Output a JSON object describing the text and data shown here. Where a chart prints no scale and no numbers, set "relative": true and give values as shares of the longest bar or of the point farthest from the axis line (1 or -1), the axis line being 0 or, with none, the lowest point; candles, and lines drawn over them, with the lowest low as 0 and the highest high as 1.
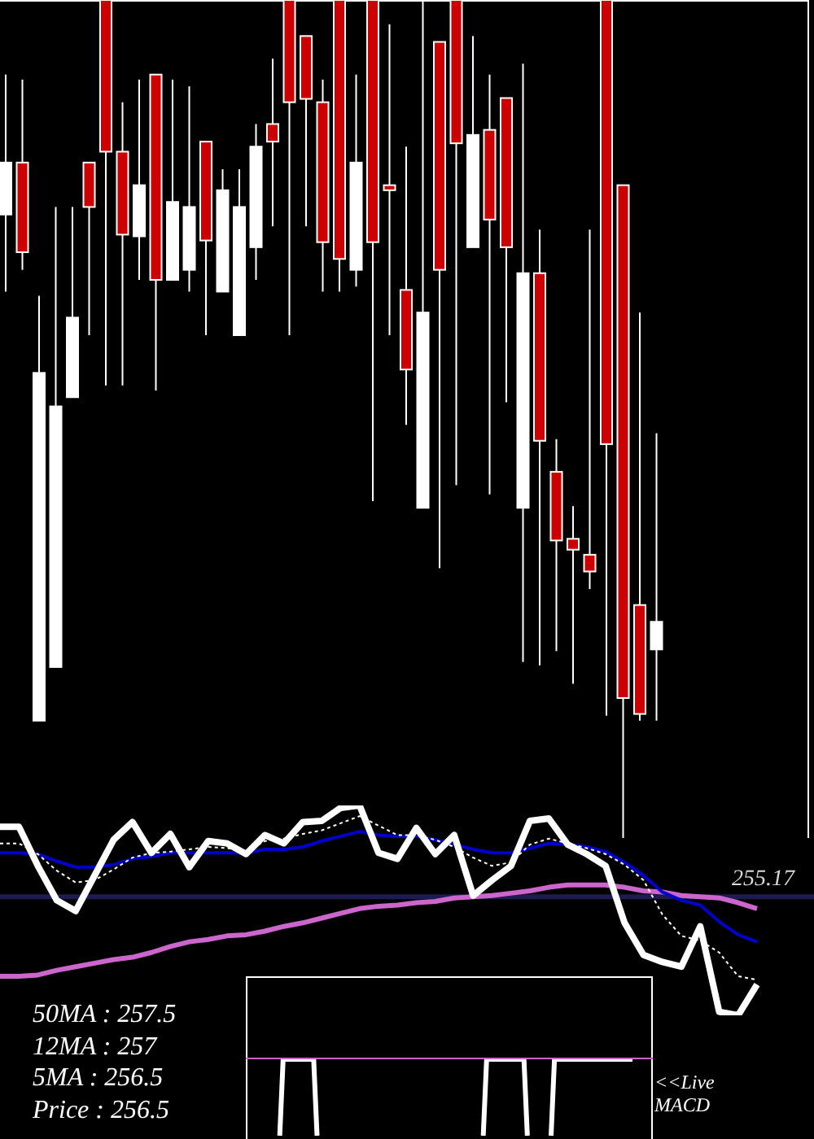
{
  "chart_data": [
    {
      "type": "candlestick",
      "relative": true,
      "categories": [
        null,
        null,
        null,
        null,
        null,
        null,
        null,
        null,
        null,
        null,
        null,
        null,
        null,
        null,
        null,
        null,
        null,
        null,
        null,
        null,
        null,
        null,
        null,
        null,
        null,
        null,
        null,
        null,
        null,
        null,
        null,
        null,
        null,
        null,
        null,
        null,
        null,
        null,
        null,
        null
      ],
      "ohlc": [
        [
          0.744,
          0.911,
          0.652,
          0.806
        ],
        [
          0.806,
          0.905,
          0.678,
          0.699
        ],
        [
          0.14,
          0.647,
          0.14,
          0.555
        ],
        [
          0.204,
          0.753,
          0.204,
          0.515
        ],
        [
          0.526,
          0.753,
          0.526,
          0.621
        ],
        [
          0.806,
          0.806,
          0.6,
          0.753
        ],
        [
          1,
          1,
          0.54,
          0.819
        ],
        [
          0.819,
          0.878,
          0.54,
          0.72
        ],
        [
          0.718,
          0.905,
          0.666,
          0.779
        ],
        [
          0.911,
          0.911,
          0.534,
          0.666
        ],
        [
          0.666,
          0.905,
          0.666,
          0.759
        ],
        [
          0.678,
          0.897,
          0.652,
          0.753
        ],
        [
          0.831,
          0.831,
          0.6,
          0.713
        ],
        [
          0.652,
          0.798,
          0.652,
          0.773
        ],
        [
          0.6,
          0.798,
          0.6,
          0.753
        ],
        [
          0.705,
          0.852,
          0.666,
          0.825
        ],
        [
          0.852,
          0.93,
          0.73,
          0.831
        ],
        [
          1,
          1,
          0.6,
          0.878
        ],
        [
          0.957,
          0.957,
          0.73,
          0.882
        ],
        [
          0.878,
          0.905,
          0.652,
          0.711
        ],
        [
          1,
          1,
          0.652,
          0.691
        ],
        [
          0.678,
          0.911,
          0.658,
          0.806
        ],
        [
          1,
          1,
          0.402,
          0.711
        ],
        [
          0.779,
          0.971,
          0.6,
          0.773
        ],
        [
          0.654,
          0.825,
          0.493,
          0.559
        ],
        [
          0.394,
          1,
          0.394,
          0.627
        ],
        [
          0.95,
          0.95,
          0.322,
          0.678
        ],
        [
          1,
          1,
          0.421,
          0.829
        ],
        [
          0.705,
          0.957,
          0.705,
          0.839
        ],
        [
          0.845,
          0.911,
          0.41,
          0.738
        ],
        [
          0.883,
          0.883,
          0.52,
          0.705
        ],
        [
          0.394,
          0.924,
          0.21,
          0.674
        ],
        [
          0.674,
          0.726,
          0.206,
          0.474
        ],
        [
          0.437,
          0.476,
          0.223,
          0.355
        ],
        [
          0.357,
          0.396,
          0.184,
          0.344
        ],
        [
          0.338,
          0.726,
          0.297,
          0.318
        ],
        [
          1,
          1,
          0.146,
          0.47
        ],
        [
          0.779,
          0.779,
          0,
          0.167
        ],
        [
          0.278,
          0.627,
          0.14,
          0.148
        ],
        [
          0.225,
          0.483,
          0.14,
          0.258
        ]
      ],
      "colors": [
        "#ffffff",
        "#cc0000",
        "#ffffff",
        "#ffffff",
        "#ffffff",
        "#cc0000",
        "#cc0000",
        "#cc0000",
        "#ffffff",
        "#cc0000",
        "#ffffff",
        "#ffffff",
        "#cc0000",
        "#ffffff",
        "#ffffff",
        "#ffffff",
        "#cc0000",
        "#cc0000",
        "#cc0000",
        "#cc0000",
        "#cc0000",
        "#ffffff",
        "#cc0000",
        "#cc0000",
        "#cc0000",
        "#ffffff",
        "#cc0000",
        "#cc0000",
        "#ffffff",
        "#cc0000",
        "#cc0000",
        "#ffffff",
        "#cc0000",
        "#cc0000",
        "#cc0000",
        "#cc0000",
        "#cc0000",
        "#cc0000",
        "#cc0000",
        "#ffffff"
      ]
    },
    {
      "type": "line",
      "relative": true,
      "categories": [
        null,
        null,
        null,
        null,
        null,
        null,
        null,
        null,
        null,
        null,
        null,
        null,
        null,
        null,
        null,
        null,
        null,
        null,
        null,
        null,
        null,
        null,
        null,
        null,
        null,
        null,
        null,
        null,
        null,
        null,
        null,
        null,
        null,
        null,
        null,
        null,
        null,
        null,
        null,
        null,
        null
      ],
      "series": [
        {
          "color": "#cc66cc",
          "values": [
            -0.67,
            -0.67,
            -0.66,
            -0.62,
            -0.59,
            -0.56,
            -0.53,
            -0.51,
            -0.47,
            -0.42,
            -0.38,
            -0.36,
            -0.33,
            -0.32,
            -0.29,
            -0.25,
            -0.22,
            -0.18,
            -0.14,
            -0.1,
            -0.08,
            -0.07,
            -0.05,
            -0.04,
            -0.01,
            0,
            0.01,
            0.03,
            0.05,
            0.08,
            0.1,
            0.1,
            0.1,
            0.08,
            0.05,
            0.04,
            0.01,
            0,
            -0.01,
            -0.05,
            -0.1
          ]
        },
        {
          "color": "#0000cc",
          "values": [
            0.37,
            0.37,
            0.36,
            0.3,
            0.25,
            0.25,
            0.27,
            0.32,
            0.34,
            0.37,
            0.37,
            0.37,
            0.37,
            0.37,
            0.4,
            0.4,
            0.42,
            0.47,
            0.51,
            0.55,
            0.52,
            0.51,
            0.51,
            0.48,
            0.44,
            0.4,
            0.37,
            0.37,
            0.41,
            0.45,
            0.44,
            0.42,
            0.38,
            0.29,
            0.18,
            0.04,
            -0.03,
            -0.07,
            -0.21,
            -0.32,
            -0.38
          ]
        },
        {
          "color": "#ffffff",
          "line_style": "dotted",
          "values": [
            0.45,
            0.45,
            0.36,
            0.22,
            0.12,
            0.14,
            0.23,
            0.33,
            0.37,
            0.38,
            0.4,
            0.42,
            0.41,
            0.38,
            0.47,
            0.49,
            0.53,
            0.56,
            0.62,
            0.68,
            0.6,
            0.52,
            0.52,
            0.48,
            0.42,
            0.33,
            0.26,
            0.29,
            0.44,
            0.49,
            0.45,
            0.41,
            0.36,
            0.27,
            0.14,
            -0.15,
            -0.33,
            -0.37,
            -0.47,
            -0.67,
            -0.7
          ]
        },
        {
          "color": "#ffffff",
          "values": [
            0.59,
            0.59,
            0.26,
            -0.03,
            -0.12,
            0.18,
            0.48,
            0.63,
            0.37,
            0.53,
            0.25,
            0.47,
            0.45,
            0.36,
            0.52,
            0.45,
            0.63,
            0.64,
            0.75,
            0.77,
            0.37,
            0.32,
            0.58,
            0.36,
            0.52,
            0.01,
            0.14,
            0.26,
            0.64,
            0.66,
            0.44,
            0.36,
            0.26,
            -0.22,
            -0.49,
            -0.55,
            -0.59,
            -0.25,
            -0.97,
            -1,
            -0.74
          ]
        }
      ],
      "ref_lines": [
        {
          "axis": "y",
          "value": 0,
          "color": "#1c1c50"
        }
      ],
      "annotations": [
        "255.17",
        "50MA : 257.5",
        "12MA : 257",
        "5MA : 256.5",
        "Price : 256.5"
      ]
    },
    {
      "type": "line",
      "relative": true,
      "categories": [
        null,
        null,
        null,
        null,
        null,
        null,
        null,
        null,
        null,
        null,
        null,
        null,
        null,
        null,
        null,
        null,
        null,
        null,
        null,
        null,
        null,
        null,
        null,
        null,
        null,
        null,
        null,
        null,
        null,
        null,
        null,
        null,
        null,
        null,
        null,
        null,
        null,
        null,
        null,
        null,
        null,
        null,
        null,
        null,
        null,
        null,
        null,
        null,
        null,
        null,
        null,
        null,
        null,
        null,
        null,
        null,
        null,
        null,
        null,
        null,
        null,
        null,
        null,
        null,
        null,
        null,
        null,
        null,
        null,
        null,
        null,
        null,
        null,
        null,
        null,
        null,
        null,
        null,
        null,
        null,
        null,
        null,
        null,
        null,
        null,
        null,
        null,
        null,
        null,
        null,
        null,
        null,
        null,
        null,
        null,
        null,
        null,
        null,
        null,
        null,
        null,
        null,
        null,
        null,
        null,
        null,
        null,
        null,
        null,
        null,
        null,
        null,
        null,
        null,
        null,
        null,
        null,
        null,
        null,
        null,
        null
      ],
      "series": [
        {
          "color": "#ffffff",
          "values": [
            null,
            null,
            null,
            null,
            null,
            null,
            null,
            null,
            null,
            null,
            0,
            0.98,
            0.98,
            0.98,
            0.98,
            0.98,
            0.98,
            0.98,
            0.98,
            0.98,
            0.98,
            0,
            null,
            null,
            null,
            null,
            null,
            null,
            null,
            null,
            null,
            null,
            null,
            null,
            null,
            null,
            null,
            null,
            null,
            null,
            null,
            null,
            null,
            null,
            null,
            null,
            null,
            null,
            null,
            null,
            null,
            null,
            null,
            null,
            null,
            null,
            null,
            null,
            null,
            null,
            null,
            null,
            null,
            null,
            null,
            null,
            null,
            null,
            null,
            null,
            0,
            0.98,
            0.98,
            0.98,
            0.98,
            0.98,
            0.98,
            0.98,
            0.98,
            0.98,
            0.98,
            0.98,
            0.98,
            0,
            null,
            null,
            null,
            null,
            null,
            null,
            0,
            0.98,
            0.98,
            0.98,
            0.98,
            0.98,
            0.98,
            0.98,
            0.98,
            0.98,
            0.98,
            0.98,
            0.98,
            0.98,
            0.98,
            0.98,
            0.98,
            0.98,
            0.98,
            0.98,
            0.98,
            0.98,
            0.98,
            0.98,
            0.98,
            null,
            null,
            null,
            null,
            null,
            null
          ]
        },
        {
          "color": "#cc66cc",
          "values": [
            1,
            1,
            1,
            1,
            1,
            1,
            1,
            1,
            1,
            1,
            1,
            1,
            1,
            1,
            1,
            1,
            1,
            1,
            1,
            1,
            1,
            1,
            1,
            1,
            1,
            1,
            1,
            1,
            1,
            1,
            1,
            1,
            1,
            1,
            1,
            1,
            1,
            1,
            1,
            1,
            1,
            1,
            1,
            1,
            1,
            1,
            1,
            1,
            1,
            1,
            1,
            1,
            1,
            1,
            1,
            1,
            1,
            1,
            1,
            1,
            1,
            1,
            1,
            1,
            1,
            1,
            1,
            1,
            1,
            1,
            1,
            1,
            1,
            1,
            1,
            1,
            1,
            1,
            1,
            1,
            1,
            1,
            1,
            1,
            1,
            1,
            1,
            1,
            1,
            1,
            1,
            1,
            1,
            1,
            1,
            1,
            1,
            1,
            1,
            1,
            1,
            1,
            1,
            1,
            1,
            1,
            1,
            1,
            1,
            1,
            1,
            1,
            1,
            1,
            1,
            1,
            1,
            1,
            1,
            1,
            1
          ]
        }
      ],
      "annotations": [
        "<<Live MACD"
      ]
    }
  ]
}
